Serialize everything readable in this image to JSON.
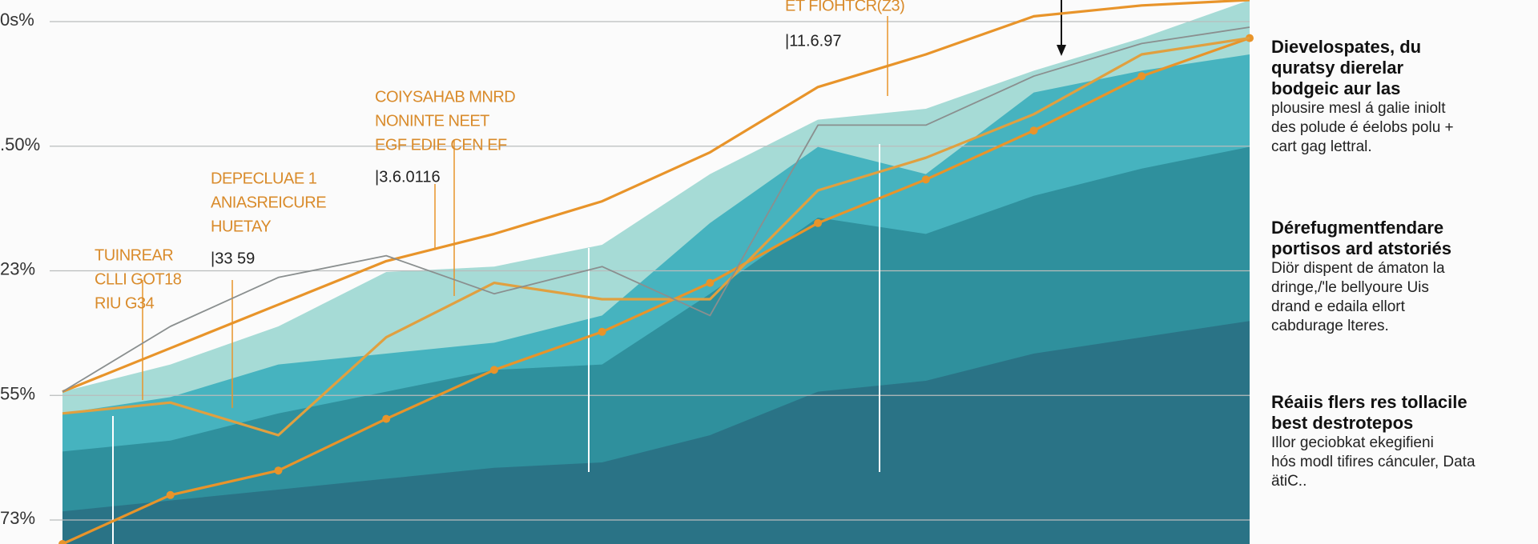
{
  "chart_data": {
    "type": "line",
    "categories": [
      null,
      null,
      null,
      null,
      null,
      null,
      null,
      null,
      null,
      null,
      null,
      null
    ],
    "ylim": [
      0,
      100
    ],
    "y_axis_labels": [
      "0s%",
      ".50%",
      "23%",
      "55%",
      "73%"
    ],
    "areas": [
      {
        "color": "#a6dbd6",
        "values": [
          28,
          33,
          40,
          50,
          51,
          55,
          68,
          78,
          80,
          87,
          93,
          100
        ]
      },
      {
        "color": "#46b3bf",
        "values": [
          24,
          27,
          33,
          35,
          37,
          42,
          59,
          73,
          68,
          83,
          87,
          90
        ]
      },
      {
        "color": "#2f909d",
        "values": [
          17,
          19,
          24,
          28,
          32,
          33,
          46,
          60,
          57,
          64,
          69,
          73
        ]
      },
      {
        "color": "#2a7386",
        "values": [
          6,
          8,
          10,
          12,
          14,
          15,
          20,
          28,
          30,
          35,
          38,
          41
        ]
      }
    ],
    "series": [
      {
        "color": "#e8942a",
        "values": [
          28,
          36,
          44,
          52,
          57,
          63,
          72,
          84,
          90,
          97,
          99,
          100
        ],
        "markers": false
      },
      {
        "color": "#e8942a",
        "values": [
          0,
          9,
          13.5,
          23,
          32,
          39,
          48,
          59,
          67,
          76,
          86,
          93
        ],
        "markers": true
      },
      {
        "color": "#e0a040",
        "values": [
          24,
          26,
          20,
          38,
          48,
          45,
          45,
          65,
          71,
          79,
          90,
          93
        ],
        "markers": false
      },
      {
        "color": "#8a8f8f",
        "values": [
          28,
          40,
          49,
          53,
          46,
          51,
          42,
          77,
          77,
          86,
          92,
          95
        ],
        "markers": false
      }
    ],
    "annotations": [
      {
        "lines": [
          "TUINREAR",
          "CLLI GOT18",
          "RIU G34"
        ]
      },
      {
        "lines": [
          "DEPECLUAE 1",
          "ANIASREICURE",
          "HUETAY"
        ],
        "value": "|33 59"
      },
      {
        "lines": [
          "COIYSAHAB MNRD",
          "NONINTE NEET",
          "EGF EDIE CEN EF"
        ],
        "value": "|3.6.0116"
      },
      {
        "lines": [
          "ET FIOHTCR(Z3)"
        ],
        "value": "|11.6.97"
      }
    ]
  },
  "side_notes": [
    {
      "heading": [
        "Dievelospates, du",
        "quratsy dierelar",
        "bodgeic aur las"
      ],
      "body": [
        "plousire mesl á galie iniolt",
        "des polude é éelobs polu +",
        "cart gag lettral."
      ]
    },
    {
      "heading": [
        "Dérefugmentfendare",
        "portisos ard atstoriés"
      ],
      "body": [
        "Diör dispent de ámaton la",
        "dringe,/'le bellyoure Uis",
        "drand e edaila ellort",
        "cabdurage lteres."
      ]
    },
    {
      "heading": [
        "Réaiis flers res tollacile",
        "best destrotepos"
      ],
      "body": [
        "Illor geciobkat ekegifieni",
        "hós modl tifires cánculer, Data",
        "ätiC.."
      ]
    }
  ]
}
